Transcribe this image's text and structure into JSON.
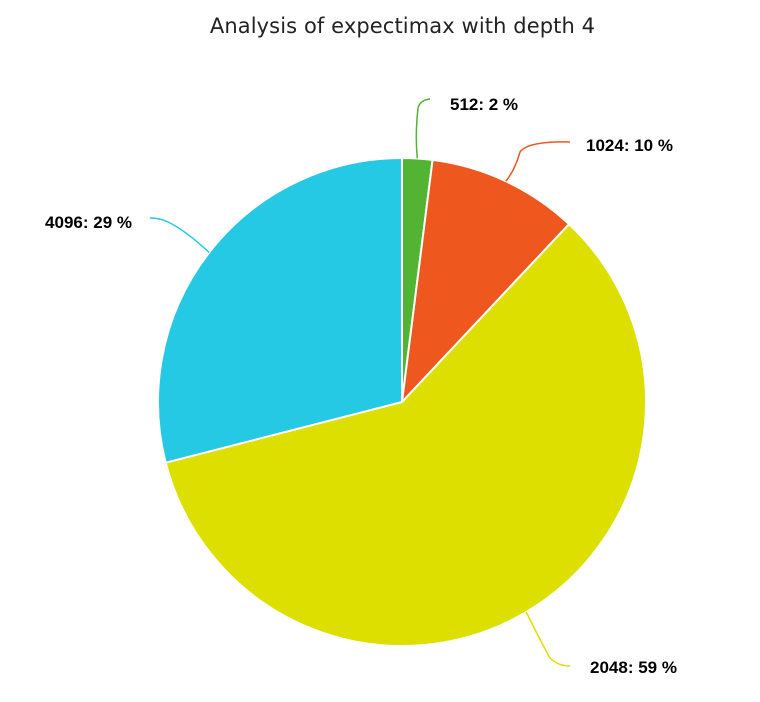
{
  "chart_data": {
    "type": "pie",
    "title": "Analysis of expectimax with depth 4",
    "slices": [
      {
        "label": "512: 2 %",
        "category": "512",
        "value": 2,
        "color": "#52b432"
      },
      {
        "label": "1024: 10 %",
        "category": "1024",
        "value": 10,
        "color": "#ee571e"
      },
      {
        "label": "2048: 59 %",
        "category": "2048",
        "value": 59,
        "color": "#dcdf00"
      },
      {
        "label": "4096: 29 %",
        "category": "4096",
        "value": 29,
        "color": "#25c9e3"
      }
    ],
    "legend": "none",
    "data_labels": "outside-with-connectors"
  }
}
